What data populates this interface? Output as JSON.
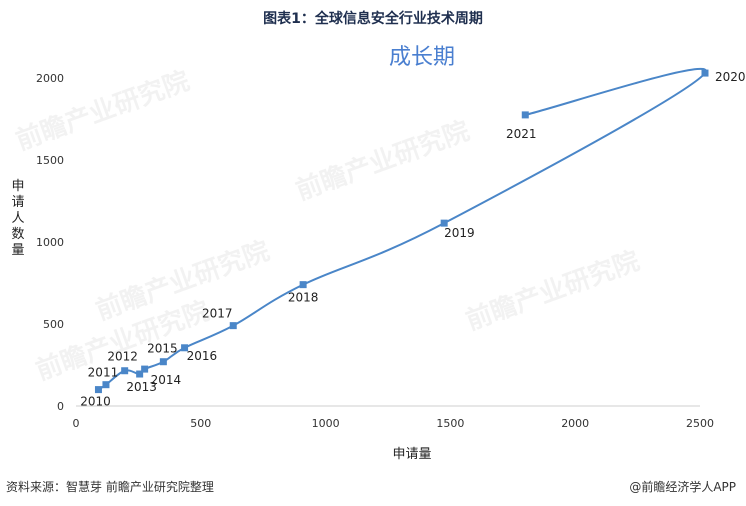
{
  "title": "图表1：全球信息安全行业技术周期",
  "footer": {
    "source": "资料来源：智慧芽 前瞻产业研究院整理",
    "brand": "@前瞻经济学人APP"
  },
  "watermark": "前瞻产业研究院",
  "colors": {
    "line": "#4a86c8",
    "phase": "#4a7fd0"
  },
  "chart_data": {
    "type": "scatter",
    "title": "成长期",
    "xlabel": "申请量",
    "ylabel": "申请人数量",
    "xlim": [
      0,
      2500
    ],
    "ylim": [
      0,
      2000
    ],
    "xticks": [
      0,
      500,
      1000,
      1500,
      2000,
      2500
    ],
    "yticks": [
      0,
      500,
      1000,
      1500,
      2000
    ],
    "grid": false,
    "legend": "none",
    "points": [
      {
        "label": "2010",
        "x": 90,
        "y": 100
      },
      {
        "label": "2011",
        "x": 120,
        "y": 130
      },
      {
        "label": "2012",
        "x": 195,
        "y": 215
      },
      {
        "label": "2013",
        "x": 255,
        "y": 195
      },
      {
        "label": "2014",
        "x": 275,
        "y": 225
      },
      {
        "label": "2015",
        "x": 350,
        "y": 270
      },
      {
        "label": "2016",
        "x": 435,
        "y": 355
      },
      {
        "label": "2017",
        "x": 630,
        "y": 490
      },
      {
        "label": "2018",
        "x": 910,
        "y": 740
      },
      {
        "label": "2019",
        "x": 1475,
        "y": 1115
      },
      {
        "label": "2020",
        "x": 2520,
        "y": 2030
      },
      {
        "label": "2021",
        "x": 1800,
        "y": 1775
      }
    ]
  }
}
